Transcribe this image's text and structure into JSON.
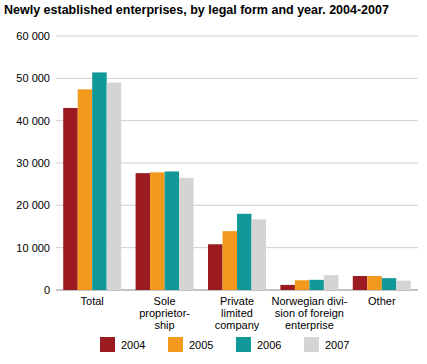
{
  "chart_data": {
    "type": "bar",
    "title": "Newly established enterprises, by legal form and year. 2004-2007",
    "categories": [
      "Total",
      "Sole\nproprietor-\nship",
      "Private\nlimited\ncompany",
      "Norwegian divi-\nsion of foreign\nenterprise",
      "Other"
    ],
    "series": [
      {
        "name": "2004",
        "color": "#9b1b20",
        "values": [
          43000,
          27600,
          10800,
          1200,
          3300
        ]
      },
      {
        "name": "2005",
        "color": "#f39a1e",
        "values": [
          47400,
          27800,
          13900,
          2300,
          3300
        ]
      },
      {
        "name": "2006",
        "color": "#11999a",
        "values": [
          51400,
          28000,
          18000,
          2400,
          2800
        ]
      },
      {
        "name": "2007",
        "color": "#d4d4d4",
        "values": [
          49000,
          26500,
          16700,
          3500,
          2200
        ]
      }
    ],
    "ylim": [
      0,
      60000
    ],
    "yticks": [
      0,
      {
        "value": 10000,
        "label": "10 000"
      },
      {
        "value": 20000,
        "label": "20 000"
      },
      {
        "value": 30000,
        "label": "30 000"
      },
      {
        "value": 40000,
        "label": "40 000"
      },
      {
        "value": 50000,
        "label": "50 000"
      },
      {
        "value": 60000,
        "label": "60 000"
      }
    ],
    "grid": true,
    "legend": "bottom"
  }
}
